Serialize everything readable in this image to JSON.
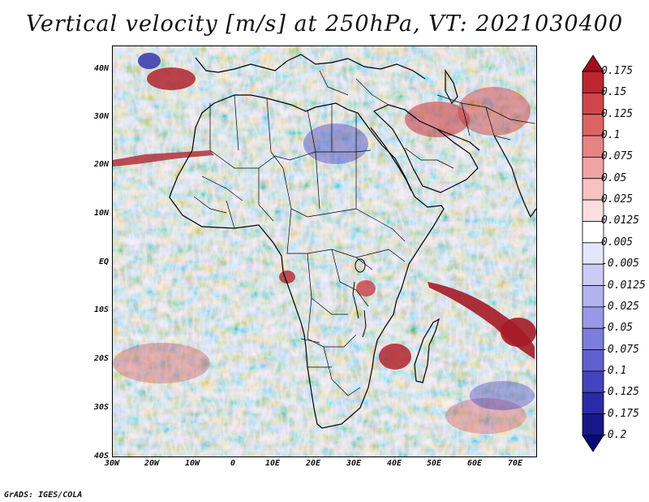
{
  "title": "Vertical velocity [m/s] at 250hPa, VT: 2021030400",
  "footer": "GrADS: IGES/COLA",
  "lat_ticks": [
    "40N",
    "30N",
    "20N",
    "10N",
    "EQ",
    "10S",
    "20S",
    "30S",
    "40S"
  ],
  "lon_ticks": [
    "30W",
    "20W",
    "10W",
    "0",
    "10E",
    "20E",
    "30E",
    "40E",
    "50E",
    "60E",
    "70E"
  ],
  "colorbar": {
    "labels": [
      "0.175",
      "0.15",
      "0.125",
      "0.1",
      "0.075",
      "0.05",
      "0.025",
      "0.0125",
      "0.005",
      "-0.005",
      "-0.0125",
      "-0.025",
      "-0.05",
      "-0.075",
      "-0.1",
      "-0.125",
      "-0.175",
      "-0.2"
    ],
    "colors": [
      "#a00f1e",
      "#bd2630",
      "#d0454a",
      "#dc6465",
      "#e68384",
      "#f0a3a4",
      "#f6c2c2",
      "#fbdfdf",
      "#ffffff",
      "#e6e6fb",
      "#cbcbf5",
      "#b2b2ef",
      "#9898e7",
      "#7d7ddd",
      "#5f5fcf",
      "#4343bd",
      "#2b2ba5",
      "#17178a",
      "#0a0a78"
    ]
  },
  "colors": {
    "updraft": "#c8333a",
    "downdraft": "#5c5cd6",
    "background_mix": "#c9c2e6",
    "coast": "#000000"
  }
}
